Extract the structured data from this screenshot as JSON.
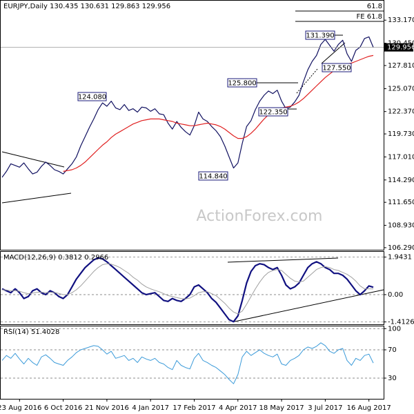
{
  "chart_data": [
    {
      "type": "line",
      "title": "EURJPY,Daily 130.435 130.631 129.863 129.956",
      "watermark": "ActionForex.com",
      "annotations": [
        "124.080",
        "125.800",
        "122.350",
        "131.390",
        "127.550",
        "114.840",
        "61.8",
        "FE 61.8"
      ],
      "last_price_label": "129.956",
      "ylim": [
        106.04,
        135.47
      ],
      "yticks": [
        {
          "value": 133.17,
          "label": "133.170"
        },
        {
          "value": 130.45,
          "label": "130.450"
        },
        {
          "value": 127.81,
          "label": "127.810"
        },
        {
          "value": 125.07,
          "label": "125.070"
        },
        {
          "value": 122.37,
          "label": "122.370"
        },
        {
          "value": 119.73,
          "label": "119.730"
        },
        {
          "value": 117.01,
          "label": "117.010"
        },
        {
          "value": 114.29,
          "label": "114.290"
        },
        {
          "value": 111.65,
          "label": "111.650"
        },
        {
          "value": 108.93,
          "label": "108.930"
        },
        {
          "value": 106.29,
          "label": "106.290"
        }
      ],
      "series": [
        {
          "color": "#101060",
          "values": [
            114.6,
            115.3,
            116.2,
            116.0,
            115.8,
            116.3,
            115.6,
            115.0,
            115.2,
            115.9,
            116.4,
            116.0,
            115.5,
            115.3,
            115.0,
            115.6,
            116.2,
            117.0,
            118.3,
            119.4,
            120.5,
            121.5,
            122.6,
            123.4,
            123.0,
            123.6,
            122.8,
            122.6,
            123.2,
            122.5,
            122.7,
            122.3,
            122.9,
            122.8,
            122.4,
            122.7,
            122.1,
            122.0,
            121.0,
            120.3,
            121.2,
            120.5,
            120.0,
            119.6,
            120.7,
            122.3,
            121.5,
            121.2,
            120.6,
            120.1,
            119.4,
            118.3,
            117.0,
            115.7,
            116.3,
            118.6,
            120.6,
            121.3,
            122.6,
            123.6,
            124.3,
            124.8,
            124.5,
            124.9,
            123.6,
            122.7,
            122.9,
            123.5,
            124.3,
            125.9,
            127.3,
            128.3,
            129.0,
            130.3,
            130.9,
            130.2,
            129.5,
            130.3,
            130.8,
            129.2,
            128.3,
            129.6,
            130.0,
            131.0,
            131.2,
            129.956
          ]
        },
        {
          "color": "#e02020",
          "values": [
            null,
            null,
            null,
            null,
            null,
            null,
            null,
            null,
            null,
            null,
            null,
            null,
            null,
            null,
            115.3,
            115.4,
            115.5,
            115.7,
            116.0,
            116.4,
            116.9,
            117.4,
            117.9,
            118.4,
            118.8,
            119.3,
            119.7,
            120.0,
            120.3,
            120.6,
            120.9,
            121.1,
            121.3,
            121.4,
            121.5,
            121.5,
            121.5,
            121.4,
            121.3,
            121.2,
            121.0,
            120.9,
            120.8,
            120.7,
            120.7,
            120.8,
            120.9,
            121.0,
            120.9,
            120.8,
            120.6,
            120.3,
            119.9,
            119.5,
            119.2,
            119.2,
            119.4,
            119.8,
            120.3,
            120.9,
            121.5,
            122.0,
            122.3,
            122.6,
            122.8,
            122.9,
            123.0,
            123.2,
            123.5,
            123.9,
            124.4,
            124.9,
            125.4,
            125.9,
            126.4,
            126.8,
            127.2,
            127.5,
            127.8,
            128.0,
            128.1,
            128.3,
            128.5,
            128.7,
            128.9,
            129.0
          ]
        }
      ]
    },
    {
      "type": "line",
      "title": "MACD(12,26,9) 0.3812 0.2966",
      "ylim": [
        -1.536,
        2.214
      ],
      "yticks": [
        1.9431,
        {
          "value": 0,
          "label": "0.00"
        },
        -1.4126
      ],
      "series": [
        {
          "color": "#101080",
          "values": [
            0.3,
            0.2,
            0.1,
            0.3,
            0.1,
            -0.2,
            -0.1,
            0.2,
            0.3,
            0.1,
            0.0,
            0.2,
            0.1,
            -0.1,
            -0.2,
            0.0,
            0.4,
            0.8,
            1.1,
            1.4,
            1.6,
            1.8,
            1.9,
            1.85,
            1.7,
            1.5,
            1.3,
            1.1,
            0.9,
            0.7,
            0.5,
            0.3,
            0.1,
            0.0,
            0.05,
            0.1,
            -0.1,
            -0.3,
            -0.35,
            -0.2,
            -0.3,
            -0.35,
            -0.2,
            0.0,
            0.4,
            0.5,
            0.3,
            0.1,
            -0.2,
            -0.4,
            -0.7,
            -1.0,
            -1.3,
            -1.4,
            -1.1,
            -0.3,
            0.6,
            1.2,
            1.5,
            1.6,
            1.55,
            1.4,
            1.3,
            1.4,
            1.0,
            0.5,
            0.3,
            0.4,
            0.6,
            1.0,
            1.4,
            1.6,
            1.7,
            1.6,
            1.4,
            1.3,
            1.1,
            1.1,
            1.0,
            0.8,
            0.5,
            0.2,
            0.0,
            0.2,
            0.45,
            0.3812
          ]
        },
        {
          "color": "#a0a0a0",
          "values": [
            0.25,
            0.24,
            0.2,
            0.2,
            0.18,
            0.1,
            0.05,
            0.08,
            0.12,
            0.13,
            0.1,
            0.12,
            0.11,
            0.06,
            0.0,
            0.0,
            0.1,
            0.25,
            0.45,
            0.7,
            0.95,
            1.2,
            1.4,
            1.55,
            1.6,
            1.58,
            1.5,
            1.4,
            1.25,
            1.1,
            0.9,
            0.75,
            0.55,
            0.4,
            0.3,
            0.22,
            0.15,
            0.05,
            -0.05,
            -0.1,
            -0.15,
            -0.2,
            -0.22,
            -0.18,
            -0.05,
            0.1,
            0.15,
            0.15,
            0.05,
            -0.05,
            -0.25,
            -0.45,
            -0.7,
            -0.9,
            -1.0,
            -0.85,
            -0.5,
            -0.1,
            0.3,
            0.65,
            0.95,
            1.15,
            1.25,
            1.3,
            1.25,
            1.05,
            0.85,
            0.7,
            0.65,
            0.7,
            0.9,
            1.1,
            1.3,
            1.4,
            1.45,
            1.4,
            1.3,
            1.25,
            1.15,
            1.05,
            0.9,
            0.7,
            0.45,
            0.3,
            0.3,
            0.2966
          ]
        }
      ]
    },
    {
      "type": "line",
      "title": "RSI(14) 51.4028",
      "ylim": [
        0.7,
        103.2
      ],
      "yticks": [
        100,
        70,
        30
      ],
      "categories": [
        null,
        null,
        null,
        null,
        "23 Aug 2016",
        null,
        null,
        null,
        null,
        null,
        null,
        null,
        null,
        null,
        "6 Oct 2016",
        null,
        null,
        null,
        null,
        null,
        null,
        null,
        null,
        null,
        "21 Nov 2016",
        null,
        null,
        null,
        null,
        null,
        null,
        null,
        null,
        null,
        "4 Jan 2017",
        null,
        null,
        null,
        null,
        null,
        null,
        null,
        null,
        null,
        "17 Feb 2017",
        null,
        null,
        null,
        null,
        null,
        null,
        null,
        null,
        null,
        "4 Apr 2017",
        null,
        null,
        null,
        null,
        null,
        null,
        null,
        null,
        null,
        "18 May 2017",
        null,
        null,
        null,
        null,
        null,
        null,
        null,
        null,
        null,
        "3 Jul 2017",
        null,
        null,
        null,
        null,
        null,
        null,
        null,
        null,
        null,
        "16 Aug 2017",
        null
      ],
      "series": [
        {
          "color": "#3a9ad9",
          "values": [
            55,
            62,
            58,
            65,
            57,
            50,
            58,
            52,
            48,
            60,
            63,
            58,
            52,
            50,
            48,
            55,
            60,
            66,
            70,
            72,
            74,
            76,
            75,
            70,
            64,
            68,
            58,
            60,
            62,
            55,
            58,
            52,
            60,
            57,
            55,
            58,
            52,
            50,
            45,
            42,
            55,
            48,
            45,
            43,
            58,
            65,
            55,
            52,
            48,
            45,
            40,
            35,
            28,
            22,
            35,
            60,
            68,
            62,
            66,
            70,
            65,
            62,
            60,
            64,
            50,
            48,
            55,
            58,
            62,
            70,
            74,
            72,
            75,
            80,
            76,
            68,
            65,
            70,
            72,
            55,
            48,
            58,
            55,
            62,
            64,
            51.4028
          ]
        }
      ]
    }
  ]
}
